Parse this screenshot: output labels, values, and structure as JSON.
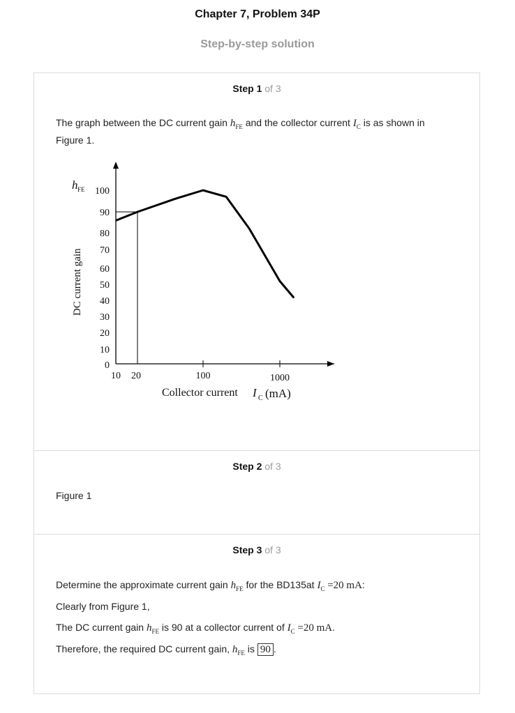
{
  "header": {
    "title": "Chapter 7, Problem 34P",
    "subtitle": "Step-by-step solution"
  },
  "steps": [
    {
      "label": "Step 1",
      "of": " of 3",
      "intro_a": "The graph between the DC current gain ",
      "intro_b": " and the collector current ",
      "intro_c": " is as shown in",
      "intro_line2": "Figure 1."
    },
    {
      "label": "Step 2",
      "of": " of 3",
      "text": "Figure 1"
    },
    {
      "label": "Step 3",
      "of": " of 3",
      "line1_a": "Determine the approximate current gain ",
      "line1_b": " for the BD135at ",
      "line1_eq": " =20 mA",
      "line1_end": ":",
      "line2": "Clearly from Figure 1,",
      "line3_a": "The DC current gain ",
      "line3_b": " is 90 at a collector current of ",
      "line3_eq": " =20 mA",
      "line3_end": ".",
      "line4_a": "Therefore, the required DC current gain, ",
      "line4_b": " is ",
      "answer": "90",
      "line4_end": "."
    }
  ],
  "symbols": {
    "h": "h",
    "h_sub": "FE",
    "I": "I",
    "I_sub": "C"
  },
  "chart_data": {
    "type": "line",
    "title": "",
    "ylabel": "DC current gain",
    "ylabel_symbol": "h",
    "ylabel_symbol_sub": "FE",
    "xlabel": "Collector current",
    "xlabel_symbol": "I",
    "xlabel_symbol_sub": "C",
    "xlabel_unit": "(mA)",
    "x_scale": "log",
    "x_ticks": [
      "10",
      "20",
      "100",
      "1000"
    ],
    "y_ticks": [
      "0",
      "10",
      "20",
      "30",
      "40",
      "50",
      "60",
      "70",
      "80",
      "90",
      "100"
    ],
    "ylim": [
      0,
      100
    ],
    "series": [
      {
        "x": [
          10,
          20,
          50,
          100,
          200,
          400,
          1000,
          1500
        ],
        "y": [
          86,
          90,
          96,
          100,
          97,
          82,
          52,
          42
        ]
      }
    ],
    "reference": {
      "x": 20,
      "y": 90
    },
    "grid": false
  }
}
